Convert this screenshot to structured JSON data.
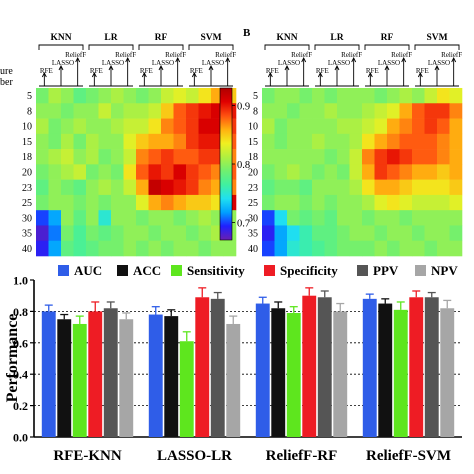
{
  "panel_b_label": "B",
  "row_axis_label_fragment": [
    "ure",
    "ber"
  ],
  "colorbar_ticks": [
    "0.9",
    "0.8",
    "0.7"
  ],
  "colors": {
    "AUC": "#2f5de8",
    "ACC": "#111111",
    "Sensitivity": "#5ee61e",
    "Specificity": "#ee1c24",
    "PPV": "#555555",
    "NPV": "#a6a6a6",
    "jet": [
      "#6a1fb0",
      "#2020ff",
      "#00a0ff",
      "#20e0f0",
      "#40f0a0",
      "#70f070",
      "#b0f040",
      "#f0f020",
      "#ffb010",
      "#ff5010",
      "#e00000",
      "#b00000"
    ]
  },
  "chart_data": [
    {
      "type": "heatmap",
      "panel": "A",
      "groups": [
        "KNN",
        "LR",
        "RF",
        "SVM"
      ],
      "methods": [
        "RFE",
        "LASSO",
        "ReliefF"
      ],
      "rows": [
        "5",
        "8",
        "10",
        "15",
        "18",
        "20",
        "23",
        "25",
        "30",
        "35",
        "40"
      ],
      "value_range": [
        0.67,
        0.93
      ],
      "values": [
        [
          0.79,
          0.81,
          0.8,
          0.78,
          0.79,
          0.8,
          0.81,
          0.8,
          0.79,
          0.8,
          0.82,
          0.83,
          0.82,
          0.84,
          0.86,
          0.85
        ],
        [
          0.8,
          0.8,
          0.79,
          0.8,
          0.8,
          0.82,
          0.8,
          0.81,
          0.81,
          0.82,
          0.85,
          0.88,
          0.89,
          0.9,
          0.91,
          0.9
        ],
        [
          0.81,
          0.79,
          0.8,
          0.81,
          0.8,
          0.8,
          0.81,
          0.82,
          0.82,
          0.84,
          0.87,
          0.88,
          0.89,
          0.91,
          0.91,
          0.89
        ],
        [
          0.8,
          0.79,
          0.81,
          0.79,
          0.81,
          0.8,
          0.8,
          0.83,
          0.85,
          0.86,
          0.86,
          0.87,
          0.89,
          0.9,
          0.9,
          0.88
        ],
        [
          0.8,
          0.81,
          0.82,
          0.8,
          0.81,
          0.79,
          0.8,
          0.82,
          0.87,
          0.88,
          0.89,
          0.88,
          0.88,
          0.89,
          0.89,
          0.87
        ],
        [
          0.79,
          0.8,
          0.81,
          0.82,
          0.79,
          0.8,
          0.79,
          0.84,
          0.88,
          0.9,
          0.89,
          0.91,
          0.89,
          0.88,
          0.87,
          0.88
        ],
        [
          0.78,
          0.8,
          0.79,
          0.78,
          0.8,
          0.81,
          0.8,
          0.82,
          0.86,
          0.92,
          0.91,
          0.9,
          0.89,
          0.87,
          0.86,
          0.87
        ],
        [
          0.79,
          0.8,
          0.8,
          0.79,
          0.8,
          0.79,
          0.8,
          0.8,
          0.83,
          0.86,
          0.87,
          0.86,
          0.85,
          0.85,
          0.84,
          0.91
        ],
        [
          0.7,
          0.72,
          0.8,
          0.78,
          0.8,
          0.75,
          0.8,
          0.8,
          0.79,
          0.8,
          0.8,
          0.79,
          0.8,
          0.81,
          0.8,
          0.8
        ],
        [
          0.68,
          0.71,
          0.79,
          0.77,
          0.79,
          0.78,
          0.79,
          0.8,
          0.8,
          0.79,
          0.8,
          0.8,
          0.79,
          0.8,
          0.81,
          0.8
        ],
        [
          0.69,
          0.72,
          0.78,
          0.77,
          0.78,
          0.79,
          0.79,
          0.8,
          0.79,
          0.8,
          0.79,
          0.8,
          0.8,
          0.79,
          0.8,
          0.8
        ]
      ]
    },
    {
      "type": "heatmap",
      "panel": "B",
      "groups": [
        "KNN",
        "LR",
        "RF",
        "SVM"
      ],
      "methods": [
        "RFE",
        "LASSO",
        "ReliefF"
      ],
      "rows": [
        "5",
        "8",
        "10",
        "15",
        "18",
        "20",
        "23",
        "25",
        "30",
        "35",
        "40"
      ],
      "value_range": [
        0.67,
        0.93
      ],
      "values": [
        [
          0.79,
          0.8,
          0.8,
          0.79,
          0.8,
          0.79,
          0.8,
          0.8,
          0.8,
          0.79,
          0.8,
          0.81,
          0.8,
          0.82,
          0.84,
          0.83
        ],
        [
          0.8,
          0.8,
          0.79,
          0.8,
          0.8,
          0.81,
          0.8,
          0.8,
          0.81,
          0.82,
          0.83,
          0.86,
          0.88,
          0.89,
          0.89,
          0.87
        ],
        [
          0.81,
          0.79,
          0.8,
          0.8,
          0.8,
          0.8,
          0.81,
          0.81,
          0.82,
          0.83,
          0.86,
          0.87,
          0.88,
          0.89,
          0.88,
          0.86
        ],
        [
          0.8,
          0.79,
          0.8,
          0.8,
          0.81,
          0.8,
          0.8,
          0.81,
          0.84,
          0.86,
          0.87,
          0.88,
          0.88,
          0.88,
          0.87,
          0.86
        ],
        [
          0.8,
          0.8,
          0.8,
          0.8,
          0.8,
          0.79,
          0.8,
          0.82,
          0.87,
          0.89,
          0.9,
          0.89,
          0.88,
          0.88,
          0.87,
          0.86
        ],
        [
          0.79,
          0.8,
          0.81,
          0.8,
          0.79,
          0.8,
          0.79,
          0.82,
          0.86,
          0.89,
          0.88,
          0.87,
          0.86,
          0.86,
          0.85,
          0.86
        ],
        [
          0.78,
          0.79,
          0.79,
          0.78,
          0.8,
          0.8,
          0.8,
          0.81,
          0.84,
          0.86,
          0.86,
          0.85,
          0.84,
          0.84,
          0.84,
          0.85
        ],
        [
          0.79,
          0.8,
          0.8,
          0.79,
          0.8,
          0.79,
          0.8,
          0.8,
          0.81,
          0.83,
          0.84,
          0.83,
          0.82,
          0.82,
          0.82,
          0.83
        ],
        [
          0.7,
          0.74,
          0.79,
          0.78,
          0.79,
          0.78,
          0.8,
          0.8,
          0.79,
          0.8,
          0.8,
          0.79,
          0.8,
          0.8,
          0.8,
          0.8
        ],
        [
          0.69,
          0.72,
          0.74,
          0.76,
          0.78,
          0.78,
          0.79,
          0.8,
          0.8,
          0.79,
          0.8,
          0.8,
          0.79,
          0.8,
          0.8,
          0.79
        ],
        [
          0.7,
          0.72,
          0.75,
          0.76,
          0.77,
          0.78,
          0.79,
          0.79,
          0.79,
          0.8,
          0.79,
          0.8,
          0.8,
          0.79,
          0.8,
          0.8
        ]
      ]
    },
    {
      "type": "bar",
      "ylabel": "Performance",
      "ylim": [
        0.0,
        1.0
      ],
      "yticks": [
        "0.0",
        "0.2",
        "0.4",
        "0.6",
        "0.8",
        "1.0"
      ],
      "ytick_values": [
        0.0,
        0.2,
        0.4,
        0.6,
        0.8,
        1.0
      ],
      "grid": "dotted horizontal",
      "legend_position": "top",
      "categories": [
        "RFE-KNN",
        "LASSO-LR",
        "ReliefF-RF",
        "ReliefF-SVM"
      ],
      "series": [
        {
          "name": "AUC",
          "values": [
            0.8,
            0.78,
            0.85,
            0.88
          ],
          "errors": [
            0.04,
            0.05,
            0.04,
            0.03
          ]
        },
        {
          "name": "ACC",
          "values": [
            0.75,
            0.77,
            0.82,
            0.85
          ],
          "errors": [
            0.03,
            0.04,
            0.04,
            0.03
          ]
        },
        {
          "name": "Sensitivity",
          "values": [
            0.72,
            0.61,
            0.79,
            0.81
          ],
          "errors": [
            0.05,
            0.06,
            0.04,
            0.05
          ]
        },
        {
          "name": "Specificity",
          "values": [
            0.8,
            0.89,
            0.9,
            0.89
          ],
          "errors": [
            0.06,
            0.06,
            0.05,
            0.04
          ]
        },
        {
          "name": "PPV",
          "values": [
            0.82,
            0.88,
            0.89,
            0.89
          ],
          "errors": [
            0.04,
            0.04,
            0.04,
            0.03
          ]
        },
        {
          "name": "NPV",
          "values": [
            0.75,
            0.72,
            0.8,
            0.82
          ],
          "errors": [
            0.04,
            0.05,
            0.05,
            0.05
          ]
        }
      ]
    }
  ]
}
